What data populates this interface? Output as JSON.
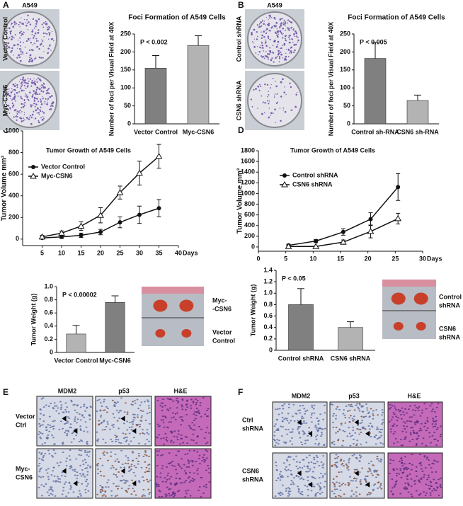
{
  "panel_letters": [
    "A",
    "B",
    "C",
    "D",
    "E",
    "F"
  ],
  "plates": [
    {
      "header": "A549",
      "labels": [
        "Vector Control",
        "Myc-CSN6"
      ]
    },
    {
      "header": "A549",
      "labels": [
        "Control shRNA",
        "CSN6 shRNA"
      ]
    }
  ],
  "tumor_photos": [
    {
      "labels": [
        [
          "Myc-",
          "-CSN6"
        ],
        [
          "Vector",
          "Control"
        ]
      ]
    },
    {
      "labels": [
        [
          "Control",
          "shRNA"
        ],
        [
          "CSN6",
          "shRNA"
        ]
      ]
    }
  ],
  "histology": [
    {
      "columns": [
        "MDM2",
        "p53",
        "H&E"
      ],
      "rows": [
        [
          "Vector",
          "Ctrl"
        ],
        [
          "Myc-",
          "CSN6"
        ]
      ]
    },
    {
      "columns": [
        "MDM2",
        "p53",
        "H&E"
      ],
      "rows": [
        [
          "Ctrl",
          "shRNA"
        ],
        [
          "CSN6",
          "shRNA"
        ]
      ]
    }
  ],
  "chart_data": [
    {
      "type": "bar",
      "title": "Foci Formation of A549 Cells",
      "ylabel": "Number of foci per Visual Field at 40X",
      "categories": [
        "Vector Control",
        "Myc-CSN6"
      ],
      "values": [
        155,
        218
      ],
      "errors": [
        35,
        27
      ],
      "colors": [
        "#808080",
        "#b3b3b3"
      ],
      "annotation": "P < 0.002",
      "ylim": [
        0,
        250
      ],
      "yticks": [
        0,
        50,
        100,
        150,
        200,
        250
      ]
    },
    {
      "type": "bar",
      "title": "Foci Formation of A549 Cells",
      "ylabel": "Number of foci per Visual Field at 40X",
      "categories": [
        "Control sh-RNA",
        "CSN6 sh-RNA"
      ],
      "values": [
        182,
        65
      ],
      "errors": [
        45,
        15
      ],
      "colors": [
        "#808080",
        "#b3b3b3"
      ],
      "annotation": "P < 0.005",
      "ylim": [
        0,
        250
      ],
      "yticks": [
        0,
        50,
        100,
        150,
        200,
        250
      ]
    },
    {
      "type": "line",
      "title": "Tumor Growth of A549 Cells",
      "ylabel": "Tumor Volume mm³",
      "xlabel": "Days",
      "x": [
        5,
        10,
        15,
        20,
        25,
        30,
        35
      ],
      "series": [
        {
          "name": "Vector Control",
          "color": "#111111",
          "marker": "circle",
          "values": [
            10,
            20,
            35,
            65,
            155,
            225,
            285
          ],
          "errors": [
            10,
            15,
            20,
            25,
            50,
            80,
            80
          ]
        },
        {
          "name": "Myc-CSN6",
          "color": "#111111",
          "marker": "triangle",
          "values": [
            20,
            55,
            120,
            220,
            430,
            610,
            765
          ],
          "errors": [
            15,
            20,
            40,
            70,
            60,
            110,
            110
          ]
        }
      ],
      "xlim": [
        0,
        40
      ],
      "xticks": [
        5,
        10,
        15,
        20,
        25,
        30,
        35,
        40
      ],
      "ylim": [
        -60,
        1000
      ],
      "yticks": [
        0,
        200,
        400,
        600,
        800,
        1000
      ]
    },
    {
      "type": "line",
      "title": "Tumor Growth of A549 Cells",
      "ylabel": "Tumor Volume mm³",
      "xlabel": "Days",
      "x": [
        5.5,
        10.5,
        15.5,
        20.5,
        25.5
      ],
      "series": [
        {
          "name": "Control shRNA",
          "color": "#111111",
          "marker": "circle",
          "values": [
            30,
            110,
            280,
            520,
            1120
          ],
          "errors": [
            20,
            30,
            60,
            120,
            250
          ]
        },
        {
          "name": "CSN6 shRNA",
          "color": "#111111",
          "marker": "triangle",
          "values": [
            10,
            10,
            90,
            290,
            530
          ],
          "errors": [
            10,
            10,
            40,
            120,
            100
          ]
        }
      ],
      "xlim": [
        0,
        30
      ],
      "xticks": [
        0,
        5,
        10,
        15,
        20,
        25,
        30
      ],
      "ylim": [
        -80,
        1800
      ],
      "yticks": [
        0,
        200,
        400,
        600,
        800,
        1000,
        1200,
        1400,
        1600,
        1800
      ]
    },
    {
      "type": "bar",
      "ylabel": "Tumor Weight (g)",
      "categories": [
        "Vector Control",
        "Myc-CSN6"
      ],
      "values": [
        0.28,
        0.76
      ],
      "errors": [
        0.13,
        0.1
      ],
      "colors": [
        "#b3b3b3",
        "#808080"
      ],
      "annotation": "P < 0.00002",
      "ylim": [
        0,
        1
      ],
      "yticks": [
        0,
        0.2,
        0.4,
        0.6,
        0.8,
        {
          "value": 1,
          "label": "1.0"
        }
      ]
    },
    {
      "type": "bar",
      "ylabel": "Tumor Weight (g)",
      "categories": [
        "Control shRNA",
        "CSN6 shRNA"
      ],
      "values": [
        0.8,
        0.4
      ],
      "errors": [
        0.28,
        0.1
      ],
      "colors": [
        "#808080",
        "#b3b3b3"
      ],
      "annotation": "P < 0.05",
      "ylim": [
        0,
        1.4
      ],
      "yticks": [
        0,
        0.2,
        0.4,
        0.6,
        0.8,
        {
          "value": 1,
          "label": "1.0"
        },
        1.2,
        1.4
      ]
    }
  ]
}
